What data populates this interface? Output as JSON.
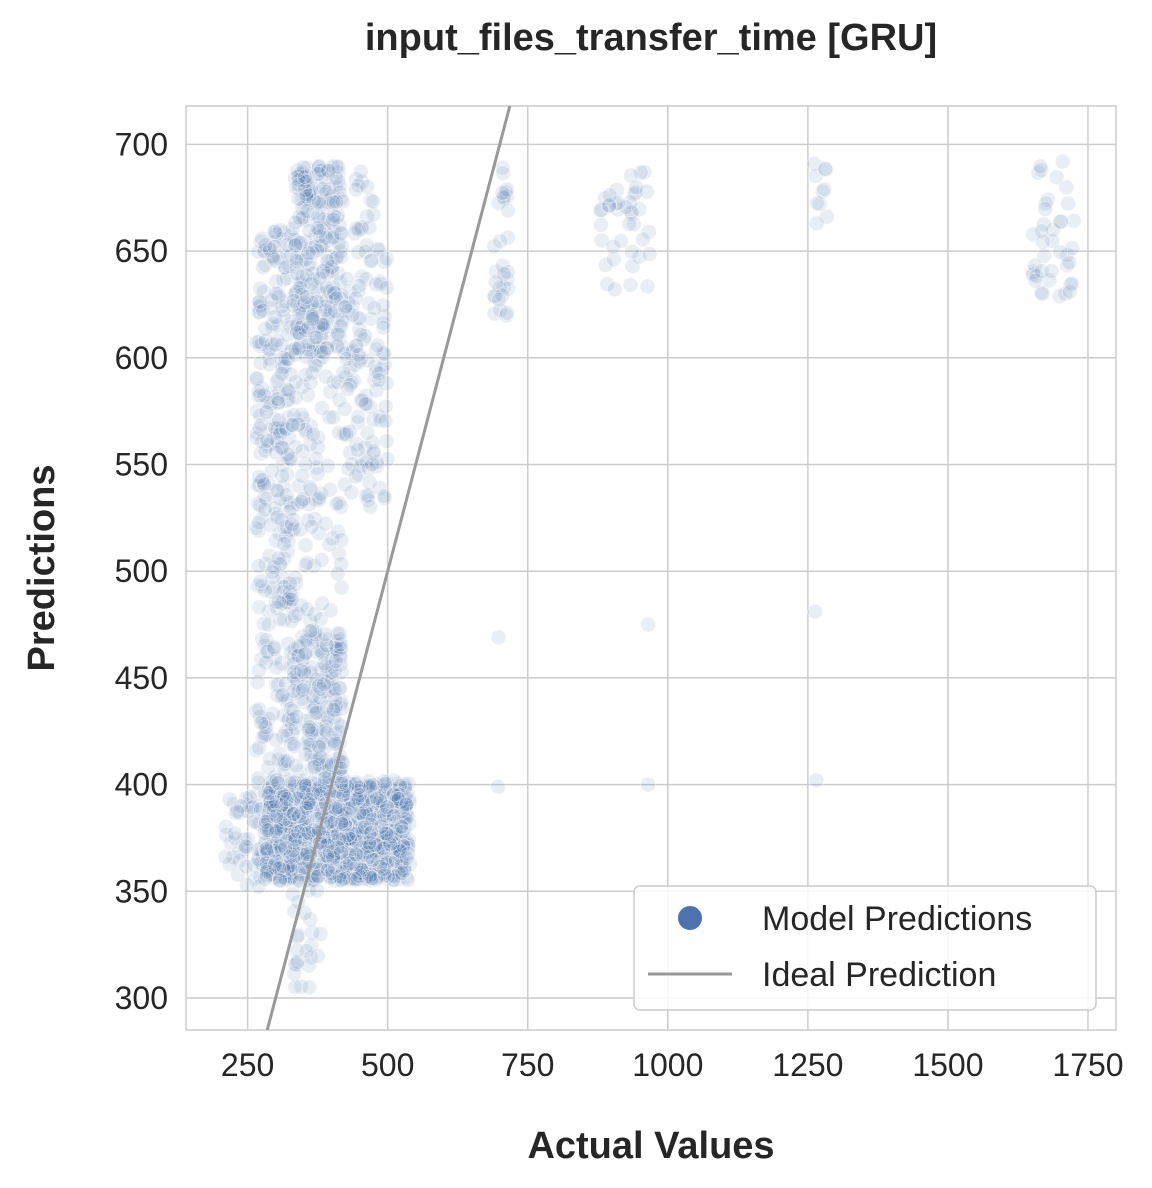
{
  "chart_data": {
    "type": "scatter",
    "title": "input_files_transfer_time [GRU]",
    "xlabel": "Actual Values",
    "ylabel": "Predictions",
    "xlim": [
      140,
      1800
    ],
    "ylim": [
      285,
      718
    ],
    "xticks": [
      250,
      500,
      750,
      1000,
      1250,
      1500,
      1750
    ],
    "yticks": [
      300,
      350,
      400,
      450,
      500,
      550,
      600,
      650,
      700
    ],
    "grid": true,
    "legend": {
      "placement": "bottom-right",
      "entries": [
        {
          "label": "Model Predictions",
          "marker": "circle"
        },
        {
          "label": "Ideal Prediction",
          "marker": "line"
        }
      ]
    },
    "colors": {
      "points": "#4c72b0",
      "ideal_line": "#999999",
      "grid": "#cccccc"
    },
    "point_alpha": 0.12,
    "ideal_line": {
      "from": [
        250,
        250
      ],
      "to": [
        1750,
        1750
      ]
    },
    "clusters": [
      {
        "x_min": 210,
        "x_max": 300,
        "y_min": 352,
        "y_max": 396,
        "count": 60
      },
      {
        "x_min": 280,
        "x_max": 540,
        "y_min": 355,
        "y_max": 402,
        "count": 900
      },
      {
        "x_min": 265,
        "x_max": 330,
        "y_min": 400,
        "y_max": 660,
        "count": 260
      },
      {
        "x_min": 330,
        "x_max": 420,
        "y_min": 400,
        "y_max": 470,
        "count": 180
      },
      {
        "x_min": 300,
        "x_max": 420,
        "y_min": 470,
        "y_max": 600,
        "count": 130
      },
      {
        "x_min": 330,
        "x_max": 420,
        "y_min": 600,
        "y_max": 690,
        "count": 260
      },
      {
        "x_min": 420,
        "x_max": 500,
        "y_min": 530,
        "y_max": 640,
        "count": 110
      },
      {
        "x_min": 440,
        "x_max": 500,
        "y_min": 640,
        "y_max": 690,
        "count": 25
      },
      {
        "x_min": 330,
        "x_max": 380,
        "y_min": 305,
        "y_max": 355,
        "count": 22
      },
      {
        "x_min": 690,
        "x_max": 715,
        "y_min": 618,
        "y_max": 690,
        "count": 30
      },
      {
        "x_min": 880,
        "x_max": 970,
        "y_min": 630,
        "y_max": 690,
        "count": 40
      },
      {
        "x_min": 1260,
        "x_max": 1285,
        "y_min": 655,
        "y_max": 692,
        "count": 10
      },
      {
        "x_min": 1650,
        "x_max": 1725,
        "y_min": 628,
        "y_max": 692,
        "count": 40
      }
    ],
    "points": [
      [
        698,
        469
      ],
      [
        697,
        399
      ],
      [
        965,
        475
      ],
      [
        965,
        400
      ],
      [
        1263,
        481
      ],
      [
        1265,
        402
      ],
      [
        360,
        305
      ],
      [
        380,
        330
      ],
      [
        355,
        322
      ]
    ]
  }
}
